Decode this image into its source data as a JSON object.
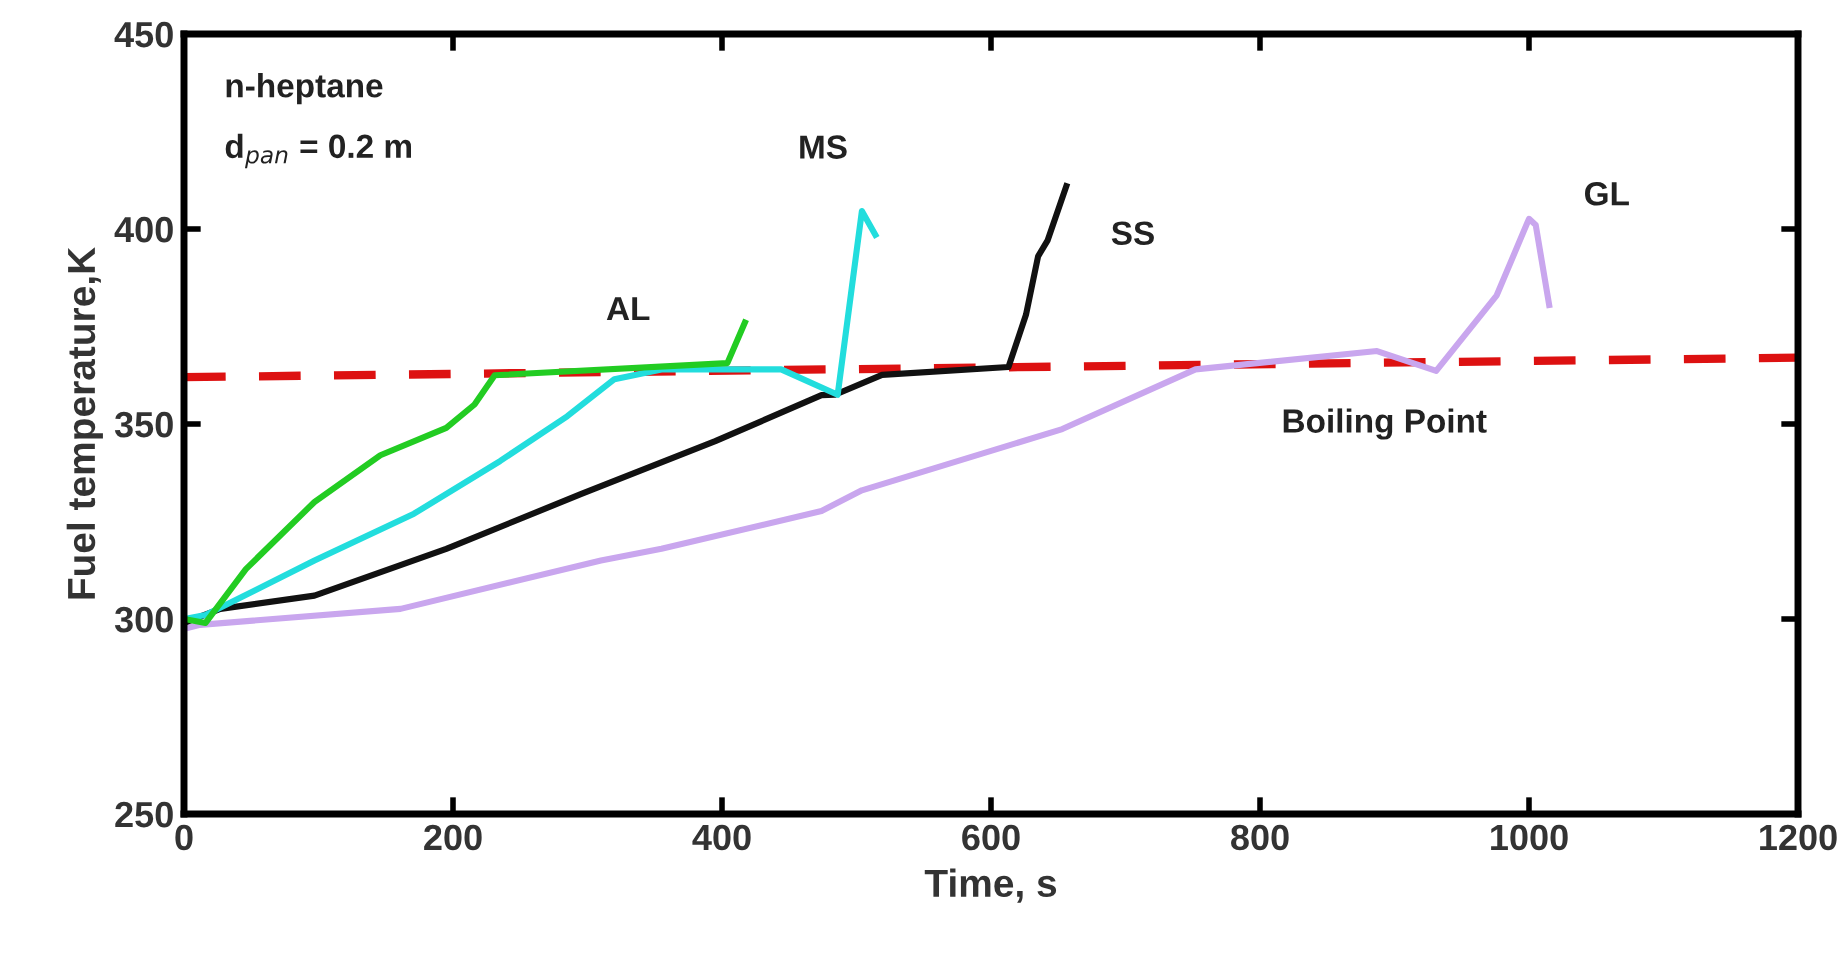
{
  "chart_data": {
    "type": "line",
    "xlabel": "Time, s",
    "ylabel": "Fuel temperature,K",
    "xlim": [
      0,
      1200
    ],
    "ylim": [
      250,
      450
    ],
    "xticks": [
      0,
      200,
      400,
      600,
      800,
      1000,
      1200
    ],
    "yticks": [
      250,
      300,
      350,
      400,
      450
    ],
    "grid": false,
    "legend": false,
    "marker": "none",
    "series": [
      {
        "color": "#dd1111",
        "line_style": "dashed",
        "x": [
          0,
          1200
        ],
        "values": [
          362,
          367
        ]
      },
      {
        "name": "GL",
        "color": "#c9a6ee",
        "x": [
          0,
          12,
          161,
          310,
          355,
          474,
          504,
          653,
          752,
          887,
          931,
          976,
          1000,
          1005,
          1015
        ],
        "values": [
          297.5,
          298.5,
          302.6,
          315,
          318,
          327.7,
          333,
          348.7,
          364,
          368.7,
          363.6,
          383,
          402.6,
          401,
          380.5
        ]
      },
      {
        "name": "SS",
        "color": "#111111",
        "x": [
          0,
          27,
          97,
          195,
          295,
          395,
          474,
          484,
          519,
          613,
          626,
          635,
          642,
          656
        ],
        "values": [
          299,
          302.6,
          306,
          318,
          332,
          345.6,
          357.4,
          357.5,
          362.6,
          364.6,
          378,
          393,
          397,
          411
        ]
      },
      {
        "name": "MS",
        "color": "#22dddd",
        "x": [
          0,
          16,
          97,
          171,
          235,
          285,
          320,
          355,
          444,
          486,
          504,
          514
        ],
        "values": [
          300,
          301,
          315,
          327,
          340.5,
          352,
          361.5,
          364,
          364,
          357.5,
          404.6,
          398.5
        ]
      },
      {
        "name": "AL",
        "color": "#22cc22",
        "x": [
          0,
          16,
          46,
          97,
          146,
          195,
          216,
          231,
          404,
          417
        ],
        "values": [
          300,
          299,
          312.8,
          330,
          342,
          349,
          355,
          362.5,
          365.6,
          376
        ]
      }
    ],
    "annotations": [
      "n-heptane",
      "d$_{pan}$ = 0.2 m",
      "Boiling Point"
    ]
  }
}
